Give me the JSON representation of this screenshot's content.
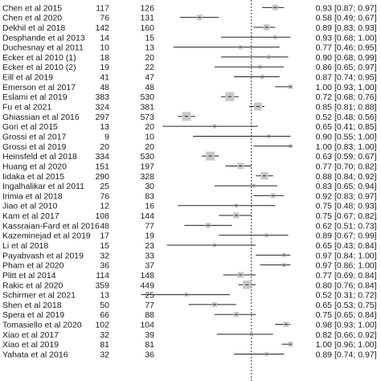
{
  "chart_data": {
    "type": "forest",
    "reference_line": 0.82,
    "xlim": [
      0.26,
      1.04
    ],
    "rows": [
      {
        "study": "",
        "n1": "",
        "n2": "",
        "est": null,
        "lo": null,
        "hi": null,
        "est_text": "",
        "ci_text": ""
      },
      {
        "study": "Chen et al 2015",
        "n1": "117",
        "n2": "126",
        "est": 0.93,
        "lo": 0.87,
        "hi": 0.97,
        "est_text": "0.93",
        "ci_text": "[0.87; 0.97]"
      },
      {
        "study": "Chen et al 2020",
        "n1": "76",
        "n2": "131",
        "est": 0.58,
        "lo": 0.49,
        "hi": 0.67,
        "est_text": "0.58",
        "ci_text": "[0.49; 0.67]"
      },
      {
        "study": "Dekhil et al 2018",
        "n1": "142",
        "n2": "160",
        "est": 0.89,
        "lo": 0.83,
        "hi": 0.93,
        "est_text": "0.89",
        "ci_text": "[0.83; 0.93]"
      },
      {
        "study": "Desphande et al 2013",
        "n1": "14",
        "n2": "15",
        "est": 0.93,
        "lo": 0.68,
        "hi": 1.0,
        "est_text": "0.93",
        "ci_text": "[0.68; 1.00]"
      },
      {
        "study": "Duchesnay et al 2011",
        "n1": "10",
        "n2": "13",
        "est": 0.77,
        "lo": 0.46,
        "hi": 0.95,
        "est_text": "0.77",
        "ci_text": "[0.46; 0.95]"
      },
      {
        "study": "Ecker et al 2010 (1)",
        "n1": "18",
        "n2": "20",
        "est": 0.9,
        "lo": 0.68,
        "hi": 0.99,
        "est_text": "0.90",
        "ci_text": "[0.68; 0.99]"
      },
      {
        "study": "Ecker et al 2010 (2)",
        "n1": "19",
        "n2": "22",
        "est": 0.86,
        "lo": 0.65,
        "hi": 0.97,
        "est_text": "0.86",
        "ci_text": "[0.65; 0.97]"
      },
      {
        "study": "Eill et al 2019",
        "n1": "41",
        "n2": "47",
        "est": 0.87,
        "lo": 0.74,
        "hi": 0.95,
        "est_text": "0.87",
        "ci_text": "[0.74; 0.95]"
      },
      {
        "study": "Emerson et al 2017",
        "n1": "48",
        "n2": "48",
        "est": 1.0,
        "lo": 0.93,
        "hi": 1.0,
        "est_text": "1.00",
        "ci_text": "[0.93; 1.00]"
      },
      {
        "study": "Eslami et al 2019",
        "n1": "383",
        "n2": "530",
        "est": 0.72,
        "lo": 0.68,
        "hi": 0.76,
        "est_text": "0.72",
        "ci_text": "[0.68; 0.76]"
      },
      {
        "study": "Fu et al 2021",
        "n1": "324",
        "n2": "381",
        "est": 0.85,
        "lo": 0.81,
        "hi": 0.88,
        "est_text": "0.85",
        "ci_text": "[0.81; 0.88]"
      },
      {
        "study": "Ghiassian et al 2016",
        "n1": "297",
        "n2": "573",
        "est": 0.52,
        "lo": 0.48,
        "hi": 0.56,
        "est_text": "0.52",
        "ci_text": "[0.48; 0.56]"
      },
      {
        "study": "Gori et al 2015",
        "n1": "13",
        "n2": "20",
        "est": 0.65,
        "lo": 0.41,
        "hi": 0.85,
        "est_text": "0.65",
        "ci_text": "[0.41; 0.85]"
      },
      {
        "study": "Grossi et al 2017",
        "n1": "9",
        "n2": "10",
        "est": 0.9,
        "lo": 0.55,
        "hi": 1.0,
        "est_text": "0.90",
        "ci_text": "[0.55; 1.00]"
      },
      {
        "study": "Grossi et al 2019",
        "n1": "20",
        "n2": "20",
        "est": 1.0,
        "lo": 0.83,
        "hi": 1.0,
        "est_text": "1.00",
        "ci_text": "[0.83; 1.00]"
      },
      {
        "study": "Heinsfeld et al 2018",
        "n1": "334",
        "n2": "530",
        "est": 0.63,
        "lo": 0.59,
        "hi": 0.67,
        "est_text": "0.63",
        "ci_text": "[0.59; 0.67]"
      },
      {
        "study": "Huang et al 2020",
        "n1": "151",
        "n2": "197",
        "est": 0.77,
        "lo": 0.7,
        "hi": 0.82,
        "est_text": "0.77",
        "ci_text": "[0.70; 0.82]"
      },
      {
        "study": "Iidaka et al 2015",
        "n1": "290",
        "n2": "328",
        "est": 0.88,
        "lo": 0.84,
        "hi": 0.92,
        "est_text": "0.88",
        "ci_text": "[0.84; 0.92]"
      },
      {
        "study": "Ingalhalikar et al 2011",
        "n1": "25",
        "n2": "30",
        "est": 0.83,
        "lo": 0.65,
        "hi": 0.94,
        "est_text": "0.83",
        "ci_text": "[0.65; 0.94]"
      },
      {
        "study": "Irimia et al 2018",
        "n1": "76",
        "n2": "83",
        "est": 0.92,
        "lo": 0.83,
        "hi": 0.97,
        "est_text": "0.92",
        "ci_text": "[0.83; 0.97]"
      },
      {
        "study": "Jiao et al 2010",
        "n1": "12",
        "n2": "16",
        "est": 0.75,
        "lo": 0.48,
        "hi": 0.93,
        "est_text": "0.75",
        "ci_text": "[0.48; 0.93]"
      },
      {
        "study": "Kam et al 2017",
        "n1": "108",
        "n2": "144",
        "est": 0.75,
        "lo": 0.67,
        "hi": 0.82,
        "est_text": "0.75",
        "ci_text": "[0.67; 0.82]"
      },
      {
        "study": "Kassraian-Fard et al 2016",
        "n1": "48",
        "n2": "77",
        "est": 0.62,
        "lo": 0.51,
        "hi": 0.73,
        "est_text": "0.62",
        "ci_text": "[0.51; 0.73]"
      },
      {
        "study": "Kazeminejad et al 2019",
        "n1": "17",
        "n2": "19",
        "est": 0.89,
        "lo": 0.67,
        "hi": 0.99,
        "est_text": "0.89",
        "ci_text": "[0.67; 0.99]"
      },
      {
        "study": "Li et al 2018",
        "n1": "15",
        "n2": "23",
        "est": 0.65,
        "lo": 0.43,
        "hi": 0.84,
        "est_text": "0.65",
        "ci_text": "[0.43; 0.84]"
      },
      {
        "study": "Payabvash et al 2019",
        "n1": "32",
        "n2": "33",
        "est": 0.97,
        "lo": 0.84,
        "hi": 1.0,
        "est_text": "0.97",
        "ci_text": "[0.84; 1.00]"
      },
      {
        "study": "Pham et al 2020",
        "n1": "36",
        "n2": "37",
        "est": 0.97,
        "lo": 0.86,
        "hi": 1.0,
        "est_text": "0.97",
        "ci_text": "[0.86; 1.00]"
      },
      {
        "study": "Plitt et al 2014",
        "n1": "114",
        "n2": "148",
        "est": 0.77,
        "lo": 0.69,
        "hi": 0.84,
        "est_text": "0.77",
        "ci_text": "[0.69; 0.84]"
      },
      {
        "study": "Rakic et al 2020",
        "n1": "359",
        "n2": "449",
        "est": 0.8,
        "lo": 0.76,
        "hi": 0.84,
        "est_text": "0.80",
        "ci_text": "[0.76; 0.84]"
      },
      {
        "study": "Schirmer et al 2021",
        "n1": "13",
        "n2": "25",
        "est": 0.52,
        "lo": 0.31,
        "hi": 0.72,
        "est_text": "0.52",
        "ci_text": "[0.31; 0.72]"
      },
      {
        "study": "Shen et al 2018",
        "n1": "50",
        "n2": "77",
        "est": 0.65,
        "lo": 0.53,
        "hi": 0.75,
        "est_text": "0.65",
        "ci_text": "[0.53; 0.75]"
      },
      {
        "study": "Spera et al 2019",
        "n1": "66",
        "n2": "88",
        "est": 0.75,
        "lo": 0.65,
        "hi": 0.84,
        "est_text": "0.75",
        "ci_text": "[0.65; 0.84]"
      },
      {
        "study": "Tomasiello et al 2020",
        "n1": "102",
        "n2": "104",
        "est": 0.98,
        "lo": 0.93,
        "hi": 1.0,
        "est_text": "0.98",
        "ci_text": "[0.93; 1.00]"
      },
      {
        "study": "Xiao et al 2017",
        "n1": "32",
        "n2": "39",
        "est": 0.82,
        "lo": 0.66,
        "hi": 0.92,
        "est_text": "0.82",
        "ci_text": "[0.66; 0.92]"
      },
      {
        "study": "Xiao et al 2019",
        "n1": "81",
        "n2": "81",
        "est": 1.0,
        "lo": 0.96,
        "hi": 1.0,
        "est_text": "1.00",
        "ci_text": "[0.96; 1.00]"
      },
      {
        "study": "Yahata et al 2016",
        "n1": "32",
        "n2": "36",
        "est": 0.89,
        "lo": 0.74,
        "hi": 0.97,
        "est_text": "0.89",
        "ci_text": "[0.74; 0.97]"
      }
    ],
    "colors": {
      "text": "#1a1a1a",
      "line": "#222222",
      "square": "#c8c8c8",
      "reference": "#333333"
    }
  }
}
